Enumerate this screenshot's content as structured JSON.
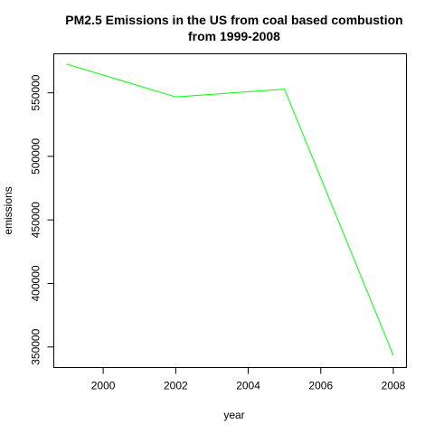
{
  "chart_data": {
    "type": "line",
    "title_lines": [
      "PM2.5 Emissions in the US from coal based combustion",
      "from 1999-2008"
    ],
    "xlabel": "year",
    "ylabel": "emissions",
    "x": [
      1999,
      2002,
      2005,
      2008
    ],
    "series": [
      {
        "values": [
          572526,
          546789,
          552882,
          343432
        ],
        "color": "#00ff00"
      }
    ],
    "xlim": [
      1999,
      2008
    ],
    "ylim": [
      343432,
      572526
    ],
    "xticks": [
      2000,
      2002,
      2004,
      2006,
      2008
    ],
    "yticks": [
      350000,
      400000,
      450000,
      500000,
      550000
    ],
    "grid": false
  }
}
